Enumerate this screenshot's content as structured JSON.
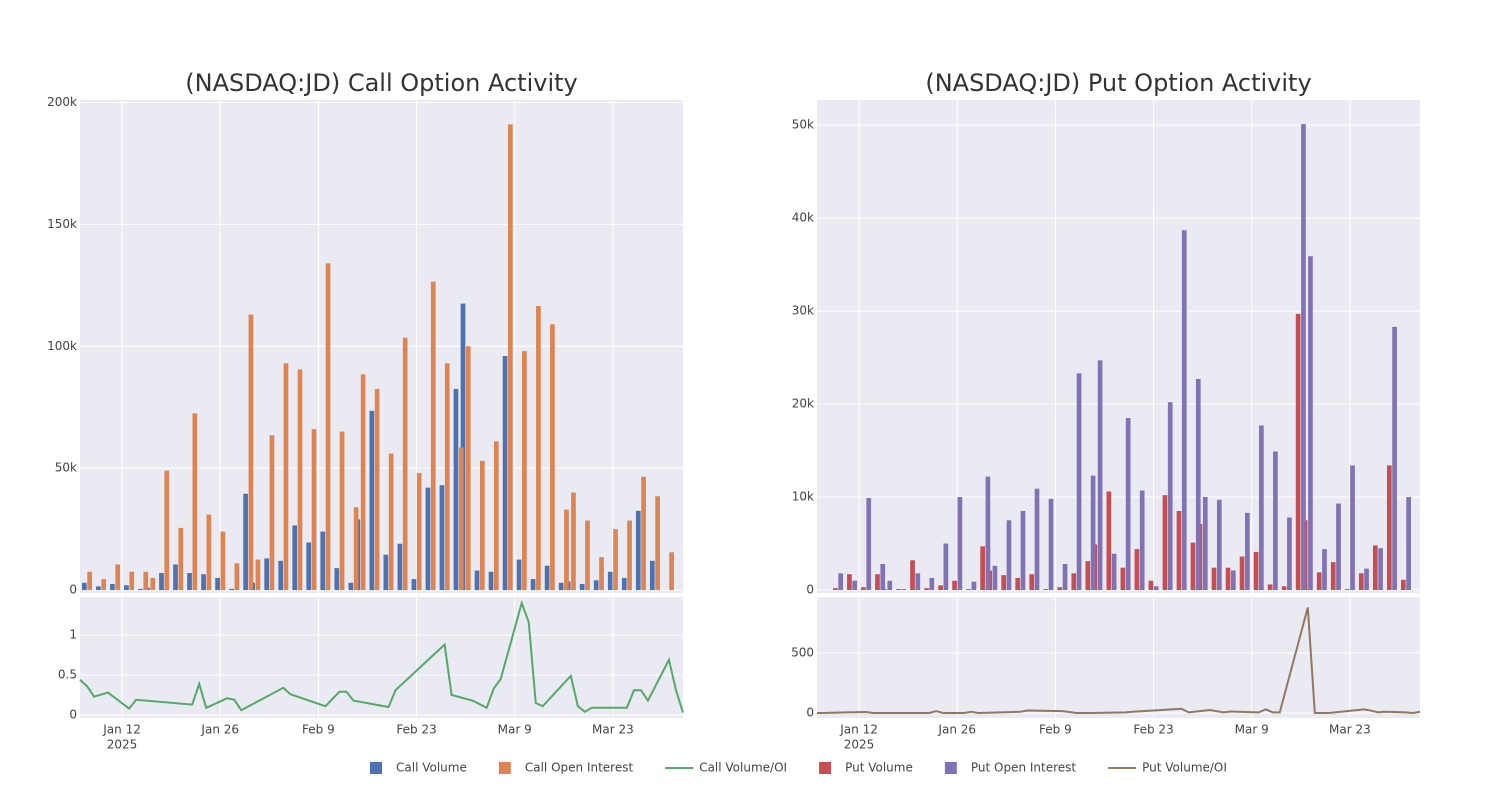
{
  "chart_data": [
    {
      "type": "bar",
      "title": "(NASDAQ:JD) Call Option Activity",
      "x": [
        "2025-01-07",
        "2025-01-09",
        "2025-01-11",
        "2025-01-13",
        "2025-01-15",
        "2025-01-16",
        "2025-01-18",
        "2025-01-20",
        "2025-01-22",
        "2025-01-24",
        "2025-01-26",
        "2025-01-28",
        "2025-01-30",
        "2025-01-31",
        "2025-02-02",
        "2025-02-04",
        "2025-02-06",
        "2025-02-08",
        "2025-02-10",
        "2025-02-12",
        "2025-02-14",
        "2025-02-15",
        "2025-02-17",
        "2025-02-19",
        "2025-02-21",
        "2025-02-23",
        "2025-02-25",
        "2025-02-27",
        "2025-03-01",
        "2025-03-02",
        "2025-03-04",
        "2025-03-06",
        "2025-03-08",
        "2025-03-10",
        "2025-03-12",
        "2025-03-14",
        "2025-03-16",
        "2025-03-17",
        "2025-03-19",
        "2025-03-21",
        "2025-03-23",
        "2025-03-25",
        "2025-03-27",
        "2025-03-29",
        "2025-03-31"
      ],
      "series": [
        {
          "name": "Call Volume",
          "color": "#4c72b0",
          "values": [
            3000,
            1500,
            2500,
            2000,
            500,
            1000,
            7000,
            10500,
            7000,
            6500,
            5000,
            500,
            39500,
            3000,
            13000,
            12000,
            26500,
            19500,
            24000,
            9000,
            3000,
            29000,
            73500,
            14500,
            19000,
            4500,
            42000,
            43000,
            82500,
            117500,
            8000,
            7500,
            96000,
            12500,
            4500,
            10000,
            3000,
            3500,
            2500,
            4000,
            7500,
            5000,
            32500,
            12000,
            0
          ]
        },
        {
          "name": "Call Open Interest",
          "color": "#dd8452",
          "values": [
            7500,
            4500,
            10500,
            7500,
            7500,
            5000,
            49000,
            25500,
            72500,
            31000,
            24000,
            11000,
            113000,
            12500,
            63500,
            93000,
            90500,
            66000,
            134000,
            65000,
            34000,
            88500,
            82500,
            56000,
            103500,
            48000,
            126500,
            93000,
            58500,
            100000,
            53000,
            61000,
            191000,
            98000,
            116500,
            109000,
            33000,
            40000,
            28500,
            13500,
            25000,
            28500,
            46500,
            38500,
            15500
          ]
        }
      ],
      "xlim": [
        "2025-01-06",
        "2025-04-02"
      ],
      "ylim": [
        -1200,
        201000
      ],
      "yticks": [
        0,
        {
          "value": 50000,
          "label": "50k"
        },
        {
          "value": 100000,
          "label": "100k"
        },
        {
          "value": 150000,
          "label": "150k"
        },
        {
          "value": 200000,
          "label": "200k"
        }
      ],
      "grid": true
    },
    {
      "type": "line",
      "x": [
        "2025-01-06",
        "2025-01-07",
        "2025-01-08",
        "2025-01-10",
        "2025-01-13",
        "2025-01-14",
        "2025-01-22",
        "2025-01-23",
        "2025-01-24",
        "2025-01-27",
        "2025-01-28",
        "2025-01-29",
        "2025-02-04",
        "2025-02-05",
        "2025-02-10",
        "2025-02-12",
        "2025-02-13",
        "2025-02-14",
        "2025-02-19",
        "2025-02-20",
        "2025-02-27",
        "2025-02-28",
        "2025-03-03",
        "2025-03-05",
        "2025-03-06",
        "2025-03-07",
        "2025-03-10",
        "2025-03-11",
        "2025-03-12",
        "2025-03-13",
        "2025-03-17",
        "2025-03-18",
        "2025-03-19",
        "2025-03-20",
        "2025-03-25",
        "2025-03-26",
        "2025-03-27",
        "2025-03-28",
        "2025-03-31",
        "2025-04-01",
        "2025-04-02"
      ],
      "series": [
        {
          "name": "Call Volume/OI",
          "color": "#55a868",
          "values": [
            0.44,
            0.36,
            0.23,
            0.28,
            0.08,
            0.19,
            0.13,
            0.39,
            0.09,
            0.21,
            0.19,
            0.06,
            0.34,
            0.26,
            0.11,
            0.29,
            0.29,
            0.18,
            0.1,
            0.31,
            0.88,
            0.25,
            0.18,
            0.09,
            0.33,
            0.45,
            1.4,
            1.16,
            0.15,
            0.11,
            0.49,
            0.11,
            0.04,
            0.09,
            0.09,
            0.31,
            0.31,
            0.18,
            0.69,
            0.31,
            0.03
          ]
        }
      ],
      "xlim": [
        "2025-01-06",
        "2025-04-02"
      ],
      "ylim": [
        -0.0375,
        1.475
      ],
      "yticks": [
        0,
        0.5,
        1
      ],
      "xticks": [
        {
          "value": "2025-01-12",
          "label": "Jan 12",
          "year": "2025"
        },
        {
          "value": "2025-01-26",
          "label": "Jan 26"
        },
        {
          "value": "2025-02-09",
          "label": "Feb 9"
        },
        {
          "value": "2025-02-23",
          "label": "Feb 23"
        },
        {
          "value": "2025-03-09",
          "label": "Mar 9"
        },
        {
          "value": "2025-03-23",
          "label": "Mar 23"
        }
      ],
      "grid": true
    },
    {
      "type": "bar",
      "title": "(NASDAQ:JD) Put Option Activity",
      "x": [
        "2025-01-09",
        "2025-01-11",
        "2025-01-13",
        "2025-01-15",
        "2025-01-16",
        "2025-01-18",
        "2025-01-20",
        "2025-01-22",
        "2025-01-24",
        "2025-01-26",
        "2025-01-28",
        "2025-01-30",
        "2025-01-31",
        "2025-02-02",
        "2025-02-04",
        "2025-02-06",
        "2025-02-08",
        "2025-02-10",
        "2025-02-12",
        "2025-02-14",
        "2025-02-15",
        "2025-02-17",
        "2025-02-19",
        "2025-02-21",
        "2025-02-23",
        "2025-02-25",
        "2025-02-27",
        "2025-03-01",
        "2025-03-02",
        "2025-03-04",
        "2025-03-06",
        "2025-03-08",
        "2025-03-10",
        "2025-03-12",
        "2025-03-14",
        "2025-03-16",
        "2025-03-17",
        "2025-03-19",
        "2025-03-21",
        "2025-03-23",
        "2025-03-25",
        "2025-03-27",
        "2025-03-29",
        "2025-03-31"
      ],
      "series": [
        {
          "name": "Put Volume",
          "color": "#c44e52",
          "values": [
            200,
            1700,
            300,
            1700,
            100,
            100,
            3200,
            200,
            500,
            1000,
            100,
            4700,
            2100,
            1600,
            1300,
            1700,
            100,
            300,
            1800,
            3100,
            4900,
            10600,
            2400,
            4400,
            1000,
            10200,
            8500,
            5100,
            7100,
            2400,
            2400,
            3600,
            4100,
            600,
            400,
            29700,
            7500,
            1900,
            3000,
            100,
            1800,
            4800,
            13400,
            1100
          ]
        },
        {
          "name": "Put Open Interest",
          "color": "#8172b3",
          "values": [
            1800,
            1000,
            9900,
            2800,
            1000,
            100,
            1800,
            1300,
            5000,
            10000,
            900,
            12200,
            2600,
            7500,
            8500,
            10900,
            9800,
            2800,
            23300,
            12300,
            24700,
            3900,
            18500,
            10700,
            400,
            20200,
            38700,
            22700,
            10000,
            9700,
            2100,
            8300,
            17700,
            14900,
            7800,
            50100,
            35900,
            4400,
            9300,
            13400,
            2300,
            4500,
            28300,
            10000
          ]
        }
      ],
      "xlim": [
        "2025-01-06",
        "2025-04-02"
      ],
      "ylim": [
        -320,
        52700
      ],
      "yticks": [
        0,
        {
          "value": 10000,
          "label": "10k"
        },
        {
          "value": 20000,
          "label": "20k"
        },
        {
          "value": 30000,
          "label": "30k"
        },
        {
          "value": 40000,
          "label": "40k"
        },
        {
          "value": 50000,
          "label": "50k"
        }
      ],
      "grid": true
    },
    {
      "type": "line",
      "x": [
        "2025-01-06",
        "2025-01-07",
        "2025-01-08",
        "2025-01-10",
        "2025-01-13",
        "2025-01-14",
        "2025-01-22",
        "2025-01-23",
        "2025-01-24",
        "2025-01-27",
        "2025-01-28",
        "2025-01-29",
        "2025-02-04",
        "2025-02-05",
        "2025-02-10",
        "2025-02-12",
        "2025-02-13",
        "2025-02-14",
        "2025-02-19",
        "2025-02-20",
        "2025-02-27",
        "2025-02-28",
        "2025-03-03",
        "2025-03-05",
        "2025-03-06",
        "2025-03-07",
        "2025-03-10",
        "2025-03-11",
        "2025-03-12",
        "2025-03-13",
        "2025-03-17",
        "2025-03-18",
        "2025-03-19",
        "2025-03-20",
        "2025-03-25",
        "2025-03-26",
        "2025-03-27",
        "2025-03-28",
        "2025-03-31",
        "2025-04-01",
        "2025-04-02"
      ],
      "series": [
        {
          "name": "Put Volume/OI",
          "color": "#937860",
          "values": [
            0,
            0,
            2,
            5,
            8,
            0,
            0,
            15,
            0,
            0,
            10,
            0,
            10,
            20,
            15,
            0,
            0,
            0,
            5,
            10,
            35,
            5,
            25,
            5,
            12,
            10,
            5,
            30,
            5,
            5,
            880,
            0,
            0,
            0,
            30,
            20,
            5,
            10,
            5,
            0,
            10
          ]
        }
      ],
      "xlim": [
        "2025-01-06",
        "2025-04-02"
      ],
      "ylim": [
        -42,
        967
      ],
      "yticks": [
        0,
        500
      ],
      "xticks": [
        {
          "value": "2025-01-12",
          "label": "Jan 12",
          "year": "2025"
        },
        {
          "value": "2025-01-26",
          "label": "Jan 26"
        },
        {
          "value": "2025-02-09",
          "label": "Feb 9"
        },
        {
          "value": "2025-02-23",
          "label": "Feb 23"
        },
        {
          "value": "2025-03-09",
          "label": "Mar 9"
        },
        {
          "value": "2025-03-23",
          "label": "Mar 23"
        }
      ],
      "grid": true
    }
  ]
}
